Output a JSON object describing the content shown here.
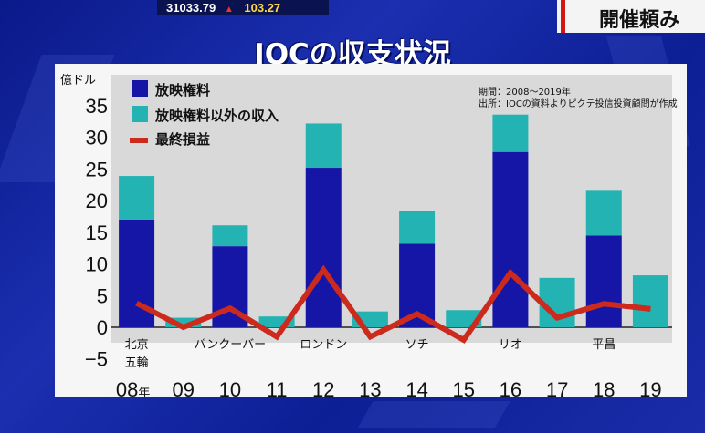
{
  "ticker": {
    "value": "31033.79",
    "arrow": "▲",
    "change": "103.27"
  },
  "side_banner": {
    "text": "開催頼み"
  },
  "chart_data": {
    "type": "bar",
    "title": "IOCの収支状況",
    "ylabel": "億ドル",
    "ylim": [
      -5,
      35
    ],
    "yticks": [
      "35",
      "30",
      "25",
      "20",
      "15",
      "10",
      "5",
      "0",
      "−5"
    ],
    "categories": [
      "08年",
      "09",
      "10",
      "11",
      "12",
      "13",
      "14",
      "15",
      "16",
      "17",
      "18",
      "19"
    ],
    "year_suffix": "年",
    "city_labels": [
      {
        "index": 0,
        "lines": [
          "北京",
          "五輪"
        ]
      },
      {
        "index": 2,
        "lines": [
          "バンクーバー"
        ]
      },
      {
        "index": 4,
        "lines": [
          "ロンドン"
        ]
      },
      {
        "index": 6,
        "lines": [
          "ソチ"
        ]
      },
      {
        "index": 8,
        "lines": [
          "リオ"
        ]
      },
      {
        "index": 10,
        "lines": [
          "平昌"
        ]
      }
    ],
    "series": [
      {
        "name": "放映権料",
        "kind": "bar",
        "color": "#1616a6",
        "values": [
          17,
          0,
          12.8,
          0,
          25.2,
          0,
          13.2,
          0,
          27.7,
          0,
          14.5,
          0
        ]
      },
      {
        "name": "放映権料以外の収入",
        "kind": "bar",
        "color": "#24b3b3",
        "values": [
          6.9,
          1.5,
          3.3,
          1.7,
          7,
          2.5,
          5.2,
          2.7,
          5.9,
          7.8,
          7.2,
          8.2
        ]
      },
      {
        "name": "最終損益",
        "kind": "line",
        "color": "#cc2a1c",
        "values": [
          3.8,
          0,
          3,
          -1.5,
          9.1,
          -1.5,
          2.1,
          -2,
          8.6,
          1.5,
          3.7,
          2.9
        ]
      }
    ],
    "stacked": true,
    "legend": "top-left",
    "note": [
      "期間：2008〜2019年",
      "出所：IOCの資料よりピクテ投信投資顧問が作成"
    ]
  }
}
